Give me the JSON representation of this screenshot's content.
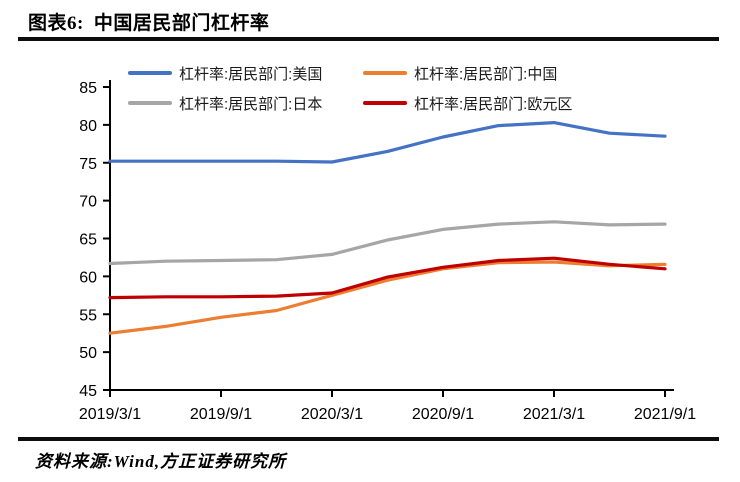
{
  "header": {
    "prefix": "图表6:",
    "title": "中国居民部门杠杆率"
  },
  "footer": {
    "source": "资料来源:Wind,方正证券研究所"
  },
  "chart_data": {
    "type": "line",
    "title": "中国居民部门杠杆率",
    "categories": [
      "2019/3/1",
      "2019/6/1",
      "2019/9/1",
      "2019/12/1",
      "2020/3/1",
      "2020/6/1",
      "2020/9/1",
      "2020/12/1",
      "2021/3/1",
      "2021/6/1",
      "2021/9/1"
    ],
    "x_tick_labels": [
      "2019/3/1",
      "2019/9/1",
      "2020/3/1",
      "2020/9/1",
      "2021/3/1",
      "2021/9/1"
    ],
    "ylim": [
      45,
      85
    ],
    "y_tick_step": 5,
    "y_tick_labels": [
      "45",
      "50",
      "55",
      "60",
      "65",
      "70",
      "75",
      "80",
      "85"
    ],
    "grid": false,
    "legend_position": "top",
    "series": [
      {
        "name": "杠杆率:居民部门:美国",
        "color": "#4472C4",
        "values": [
          75.2,
          75.2,
          75.2,
          75.2,
          75.1,
          76.5,
          78.4,
          79.9,
          80.3,
          78.9,
          78.5
        ]
      },
      {
        "name": "杠杆率:居民部门:中国",
        "color": "#ED7D31",
        "values": [
          52.5,
          53.4,
          54.6,
          55.5,
          57.5,
          59.5,
          61.0,
          61.8,
          61.9,
          61.4,
          61.6
        ]
      },
      {
        "name": "杠杆率:居民部门:日本",
        "color": "#A6A6A6",
        "values": [
          61.7,
          62.0,
          62.1,
          62.2,
          62.9,
          64.8,
          66.2,
          66.9,
          67.2,
          66.8,
          66.9
        ]
      },
      {
        "name": "杠杆率:居民部门:欧元区",
        "color": "#C00000",
        "values": [
          57.2,
          57.3,
          57.3,
          57.4,
          57.8,
          59.9,
          61.2,
          62.1,
          62.4,
          61.6,
          61.0
        ]
      }
    ]
  }
}
